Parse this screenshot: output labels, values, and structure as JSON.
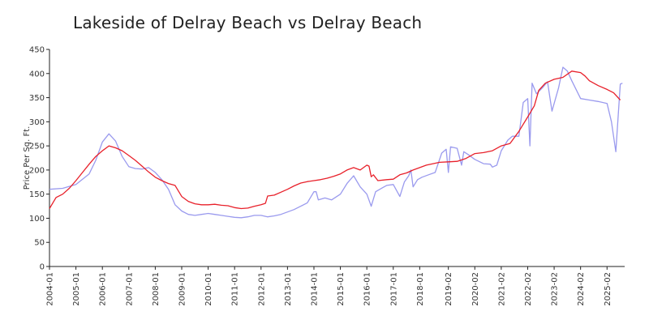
{
  "chart_data": {
    "type": "line",
    "title": "Lakeside of Delray Beach vs Delray Beach",
    "xlabel": "",
    "ylabel": "Price Per Sq. Ft.",
    "ylim": [
      0,
      450
    ],
    "y_ticks": [
      0,
      50,
      100,
      150,
      200,
      250,
      300,
      350,
      400,
      450
    ],
    "x_ticks": [
      "2004-01",
      "2005-01",
      "2006-01",
      "2007-01",
      "2008-01",
      "2009-01",
      "2010-01",
      "2011-01",
      "2012-01",
      "2013-01",
      "2014-01",
      "2015-01",
      "2016-01",
      "2017-01",
      "2018-01",
      "2019-02",
      "2020-02",
      "2021-02",
      "2022-02",
      "2023-02",
      "2024-02",
      "2025-02"
    ],
    "grid": false,
    "legend": "none",
    "series": [
      {
        "color": "#e8202a",
        "points": [
          [
            "2004-01",
            120
          ],
          [
            "2004-04",
            143
          ],
          [
            "2004-07",
            150
          ],
          [
            "2004-10",
            162
          ],
          [
            "2005-01",
            178
          ],
          [
            "2005-04",
            195
          ],
          [
            "2005-07",
            212
          ],
          [
            "2005-10",
            228
          ],
          [
            "2006-01",
            240
          ],
          [
            "2006-04",
            250
          ],
          [
            "2006-07",
            246
          ],
          [
            "2006-10",
            240
          ],
          [
            "2007-01",
            230
          ],
          [
            "2007-04",
            220
          ],
          [
            "2007-07",
            208
          ],
          [
            "2007-10",
            196
          ],
          [
            "2008-01",
            185
          ],
          [
            "2008-04",
            178
          ],
          [
            "2008-07",
            172
          ],
          [
            "2008-10",
            168
          ],
          [
            "2009-01",
            145
          ],
          [
            "2009-04",
            135
          ],
          [
            "2009-07",
            130
          ],
          [
            "2009-10",
            128
          ],
          [
            "2010-01",
            128
          ],
          [
            "2010-04",
            129
          ],
          [
            "2010-07",
            127
          ],
          [
            "2010-10",
            126
          ],
          [
            "2011-01",
            122
          ],
          [
            "2011-04",
            120
          ],
          [
            "2011-07",
            121
          ],
          [
            "2011-10",
            125
          ],
          [
            "2012-01",
            128
          ],
          [
            "2012-03",
            131
          ],
          [
            "2012-04",
            146
          ],
          [
            "2012-07",
            148
          ],
          [
            "2012-10",
            154
          ],
          [
            "2013-01",
            160
          ],
          [
            "2013-04",
            167
          ],
          [
            "2013-07",
            173
          ],
          [
            "2013-10",
            176
          ],
          [
            "2014-01",
            178
          ],
          [
            "2014-04",
            180
          ],
          [
            "2014-07",
            183
          ],
          [
            "2014-10",
            187
          ],
          [
            "2015-01",
            192
          ],
          [
            "2015-04",
            200
          ],
          [
            "2015-07",
            205
          ],
          [
            "2015-10",
            200
          ],
          [
            "2016-01",
            210
          ],
          [
            "2016-02",
            208
          ],
          [
            "2016-03",
            186
          ],
          [
            "2016-04",
            190
          ],
          [
            "2016-06",
            178
          ],
          [
            "2016-10",
            180
          ],
          [
            "2017-01",
            181
          ],
          [
            "2017-04",
            190
          ],
          [
            "2017-07",
            194
          ],
          [
            "2017-10",
            200
          ],
          [
            "2018-01",
            205
          ],
          [
            "2018-04",
            210
          ],
          [
            "2018-07",
            213
          ],
          [
            "2018-10",
            216
          ],
          [
            "2019-02",
            217
          ],
          [
            "2019-06",
            218
          ],
          [
            "2019-10",
            224
          ],
          [
            "2020-02",
            234
          ],
          [
            "2020-06",
            236
          ],
          [
            "2020-10",
            240
          ],
          [
            "2021-02",
            250
          ],
          [
            "2021-06",
            255
          ],
          [
            "2021-10",
            280
          ],
          [
            "2022-02",
            310
          ],
          [
            "2022-05",
            333
          ],
          [
            "2022-07",
            365
          ],
          [
            "2022-10",
            380
          ],
          [
            "2023-02",
            388
          ],
          [
            "2023-06",
            392
          ],
          [
            "2023-10",
            405
          ],
          [
            "2024-02",
            402
          ],
          [
            "2024-04",
            395
          ],
          [
            "2024-06",
            385
          ],
          [
            "2024-10",
            375
          ],
          [
            "2025-02",
            367
          ],
          [
            "2025-05",
            360
          ],
          [
            "2025-08",
            345
          ]
        ]
      },
      {
        "color": "#9a9aee",
        "points": [
          [
            "2004-01",
            160
          ],
          [
            "2004-07",
            162
          ],
          [
            "2005-01",
            170
          ],
          [
            "2005-07",
            192
          ],
          [
            "2005-10",
            220
          ],
          [
            "2006-01",
            258
          ],
          [
            "2006-04",
            275
          ],
          [
            "2006-07",
            260
          ],
          [
            "2006-10",
            228
          ],
          [
            "2007-01",
            207
          ],
          [
            "2007-04",
            203
          ],
          [
            "2007-07",
            202
          ],
          [
            "2007-10",
            205
          ],
          [
            "2008-01",
            195
          ],
          [
            "2008-04",
            180
          ],
          [
            "2008-07",
            160
          ],
          [
            "2008-10",
            128
          ],
          [
            "2009-01",
            115
          ],
          [
            "2009-04",
            108
          ],
          [
            "2009-07",
            106
          ],
          [
            "2009-10",
            108
          ],
          [
            "2010-01",
            110
          ],
          [
            "2010-04",
            108
          ],
          [
            "2010-07",
            106
          ],
          [
            "2010-10",
            104
          ],
          [
            "2011-01",
            102
          ],
          [
            "2011-04",
            101
          ],
          [
            "2011-07",
            103
          ],
          [
            "2011-10",
            106
          ],
          [
            "2012-01",
            106
          ],
          [
            "2012-04",
            103
          ],
          [
            "2012-07",
            105
          ],
          [
            "2012-10",
            108
          ],
          [
            "2013-01",
            113
          ],
          [
            "2013-04",
            118
          ],
          [
            "2013-07",
            125
          ],
          [
            "2013-10",
            132
          ],
          [
            "2014-01",
            155
          ],
          [
            "2014-02",
            155
          ],
          [
            "2014-03",
            138
          ],
          [
            "2014-06",
            142
          ],
          [
            "2014-09",
            138
          ],
          [
            "2015-01",
            150
          ],
          [
            "2015-04",
            172
          ],
          [
            "2015-07",
            188
          ],
          [
            "2015-10",
            165
          ],
          [
            "2016-01",
            150
          ],
          [
            "2016-03",
            125
          ],
          [
            "2016-05",
            155
          ],
          [
            "2016-08",
            163
          ],
          [
            "2016-10",
            168
          ],
          [
            "2017-01",
            170
          ],
          [
            "2017-04",
            145
          ],
          [
            "2017-06",
            175
          ],
          [
            "2017-08",
            188
          ],
          [
            "2017-09",
            200
          ],
          [
            "2017-10",
            165
          ],
          [
            "2017-12",
            180
          ],
          [
            "2018-02",
            185
          ],
          [
            "2018-05",
            190
          ],
          [
            "2018-08",
            195
          ],
          [
            "2018-11",
            235
          ],
          [
            "2019-01",
            243
          ],
          [
            "2019-02",
            195
          ],
          [
            "2019-03",
            248
          ],
          [
            "2019-06",
            245
          ],
          [
            "2019-08",
            210
          ],
          [
            "2019-09",
            238
          ],
          [
            "2019-11",
            232
          ],
          [
            "2020-02",
            222
          ],
          [
            "2020-06",
            213
          ],
          [
            "2020-09",
            212
          ],
          [
            "2020-10",
            206
          ],
          [
            "2020-12",
            210
          ],
          [
            "2021-02",
            240
          ],
          [
            "2021-05",
            262
          ],
          [
            "2021-07",
            270
          ],
          [
            "2021-10",
            270
          ],
          [
            "2021-12",
            340
          ],
          [
            "2022-02",
            348
          ],
          [
            "2022-03",
            250
          ],
          [
            "2022-04",
            380
          ],
          [
            "2022-06",
            358
          ],
          [
            "2022-09",
            372
          ],
          [
            "2022-11",
            383
          ],
          [
            "2023-01",
            322
          ],
          [
            "2023-04",
            370
          ],
          [
            "2023-06",
            413
          ],
          [
            "2023-08",
            405
          ],
          [
            "2023-10",
            385
          ],
          [
            "2024-02",
            348
          ],
          [
            "2024-06",
            345
          ],
          [
            "2024-10",
            342
          ],
          [
            "2025-02",
            338
          ],
          [
            "2025-04",
            300
          ],
          [
            "2025-06",
            238
          ],
          [
            "2025-08",
            378
          ],
          [
            "2025-09",
            380
          ]
        ]
      }
    ]
  }
}
